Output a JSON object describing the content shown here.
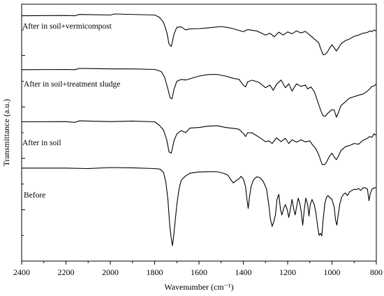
{
  "chart_data": {
    "type": "line",
    "title": "",
    "xlabel": "Wavenumber (cm⁻¹)",
    "ylabel": "Transmittance (a.u.)",
    "xlim": [
      2400,
      800
    ],
    "x_reversed": true,
    "x_ticks": [
      2400,
      2200,
      2000,
      1800,
      1600,
      1400,
      1200,
      1000,
      800
    ],
    "y_units": "arbitrary (stacked spectra, offset baselines)",
    "ylim": [
      0,
      100
    ],
    "grid": false,
    "legend": "none (series labelled directly on plot)",
    "line_color": "#000000",
    "series": [
      {
        "name": "After in soil+vermicompost",
        "points": [
          [
            2400,
            95.5
          ],
          [
            2200,
            95.6
          ],
          [
            2160,
            95.5
          ],
          [
            2140,
            96.0
          ],
          [
            2000,
            95.8
          ],
          [
            1980,
            96.2
          ],
          [
            1800,
            95.8
          ],
          [
            1780,
            95.0
          ],
          [
            1760,
            93.0
          ],
          [
            1745,
            89.0
          ],
          [
            1735,
            84.5
          ],
          [
            1725,
            83.5
          ],
          [
            1712,
            88.5
          ],
          [
            1700,
            91.0
          ],
          [
            1680,
            91.2
          ],
          [
            1660,
            90.0
          ],
          [
            1640,
            90.4
          ],
          [
            1600,
            90.5
          ],
          [
            1560,
            90.8
          ],
          [
            1500,
            91.3
          ],
          [
            1460,
            90.8
          ],
          [
            1420,
            89.8
          ],
          [
            1400,
            89.3
          ],
          [
            1380,
            90.1
          ],
          [
            1340,
            89.6
          ],
          [
            1300,
            88.0
          ],
          [
            1280,
            88.7
          ],
          [
            1260,
            87.3
          ],
          [
            1240,
            89.1
          ],
          [
            1220,
            88.0
          ],
          [
            1200,
            89.2
          ],
          [
            1180,
            88.5
          ],
          [
            1160,
            89.6
          ],
          [
            1140,
            88.8
          ],
          [
            1120,
            89.4
          ],
          [
            1100,
            88.0
          ],
          [
            1080,
            86.5
          ],
          [
            1060,
            85.0
          ],
          [
            1050,
            82.5
          ],
          [
            1040,
            80.3
          ],
          [
            1030,
            80.5
          ],
          [
            1020,
            81.5
          ],
          [
            1010,
            83.0
          ],
          [
            1000,
            84.2
          ],
          [
            990,
            83.0
          ],
          [
            980,
            81.8
          ],
          [
            970,
            83.0
          ],
          [
            960,
            84.5
          ],
          [
            940,
            85.8
          ],
          [
            920,
            86.5
          ],
          [
            900,
            87.5
          ],
          [
            880,
            88.0
          ],
          [
            860,
            88.7
          ],
          [
            840,
            89.0
          ],
          [
            830,
            89.6
          ],
          [
            820,
            89.3
          ],
          [
            810,
            90.0
          ],
          [
            800,
            89.5
          ]
        ]
      },
      {
        "name": "After in soil+treatment sludge",
        "points": [
          [
            2400,
            74.5
          ],
          [
            2200,
            74.6
          ],
          [
            2160,
            74.5
          ],
          [
            2140,
            75.0
          ],
          [
            2000,
            74.8
          ],
          [
            1900,
            74.8
          ],
          [
            1800,
            74.6
          ],
          [
            1770,
            73.8
          ],
          [
            1755,
            71.5
          ],
          [
            1740,
            67.0
          ],
          [
            1730,
            63.5
          ],
          [
            1722,
            63.2
          ],
          [
            1712,
            67.0
          ],
          [
            1700,
            70.0
          ],
          [
            1680,
            70.7
          ],
          [
            1660,
            70.5
          ],
          [
            1600,
            72.0
          ],
          [
            1560,
            72.6
          ],
          [
            1520,
            72.7
          ],
          [
            1480,
            72.0
          ],
          [
            1440,
            71.0
          ],
          [
            1420,
            70.8
          ],
          [
            1400,
            68.5
          ],
          [
            1390,
            67.8
          ],
          [
            1380,
            69.8
          ],
          [
            1360,
            70.4
          ],
          [
            1330,
            69.6
          ],
          [
            1300,
            67.5
          ],
          [
            1280,
            68.5
          ],
          [
            1265,
            66.5
          ],
          [
            1250,
            68.8
          ],
          [
            1230,
            70.5
          ],
          [
            1210,
            67.5
          ],
          [
            1195,
            69.0
          ],
          [
            1180,
            66.2
          ],
          [
            1160,
            69.0
          ],
          [
            1140,
            68.0
          ],
          [
            1120,
            68.5
          ],
          [
            1110,
            67.0
          ],
          [
            1095,
            67.8
          ],
          [
            1080,
            66.0
          ],
          [
            1070,
            63.5
          ],
          [
            1060,
            61.0
          ],
          [
            1050,
            58.5
          ],
          [
            1040,
            56.5
          ],
          [
            1030,
            56.4
          ],
          [
            1020,
            57.5
          ],
          [
            1000,
            59.0
          ],
          [
            990,
            58.8
          ],
          [
            980,
            56.0
          ],
          [
            970,
            58.0
          ],
          [
            960,
            60.5
          ],
          [
            940,
            62.0
          ],
          [
            920,
            63.5
          ],
          [
            900,
            64.0
          ],
          [
            880,
            64.6
          ],
          [
            860,
            65.0
          ],
          [
            840,
            66.2
          ],
          [
            830,
            67.0
          ],
          [
            820,
            68.0
          ],
          [
            810,
            68.2
          ],
          [
            800,
            69.0
          ]
        ]
      },
      {
        "name": "After in soil",
        "points": [
          [
            2400,
            54.2
          ],
          [
            2200,
            54.3
          ],
          [
            2160,
            54.0
          ],
          [
            2140,
            54.6
          ],
          [
            2000,
            54.3
          ],
          [
            1900,
            54.5
          ],
          [
            1800,
            54.2
          ],
          [
            1780,
            53.0
          ],
          [
            1760,
            51.0
          ],
          [
            1745,
            47.0
          ],
          [
            1735,
            42.5
          ],
          [
            1725,
            42.0
          ],
          [
            1712,
            47.0
          ],
          [
            1700,
            49.5
          ],
          [
            1680,
            50.8
          ],
          [
            1660,
            50.0
          ],
          [
            1640,
            51.8
          ],
          [
            1600,
            52.0
          ],
          [
            1560,
            52.5
          ],
          [
            1520,
            52.7
          ],
          [
            1480,
            52.0
          ],
          [
            1440,
            51.6
          ],
          [
            1420,
            51.3
          ],
          [
            1400,
            49.7
          ],
          [
            1390,
            48.5
          ],
          [
            1380,
            50.0
          ],
          [
            1360,
            49.9
          ],
          [
            1330,
            48.3
          ],
          [
            1300,
            46.5
          ],
          [
            1285,
            46.8
          ],
          [
            1270,
            45.8
          ],
          [
            1250,
            48.0
          ],
          [
            1230,
            46.5
          ],
          [
            1210,
            47.8
          ],
          [
            1195,
            45.8
          ],
          [
            1180,
            47.2
          ],
          [
            1160,
            46.3
          ],
          [
            1140,
            47.2
          ],
          [
            1120,
            46.4
          ],
          [
            1100,
            46.8
          ],
          [
            1090,
            45.5
          ],
          [
            1075,
            44.0
          ],
          [
            1060,
            41.5
          ],
          [
            1050,
            39.0
          ],
          [
            1045,
            37.7
          ],
          [
            1035,
            37.5
          ],
          [
            1025,
            38.5
          ],
          [
            1010,
            41.0
          ],
          [
            1000,
            42.0
          ],
          [
            990,
            40.5
          ],
          [
            980,
            39.5
          ],
          [
            970,
            41.0
          ],
          [
            960,
            43.0
          ],
          [
            940,
            44.5
          ],
          [
            920,
            45.0
          ],
          [
            900,
            45.8
          ],
          [
            880,
            45.5
          ],
          [
            860,
            47.0
          ],
          [
            840,
            47.8
          ],
          [
            830,
            48.5
          ],
          [
            820,
            48.2
          ],
          [
            810,
            49.5
          ],
          [
            800,
            49.0
          ]
        ]
      },
      {
        "name": "Before",
        "points": [
          [
            2400,
            36.2
          ],
          [
            2200,
            36.2
          ],
          [
            2100,
            36.0
          ],
          [
            2000,
            36.4
          ],
          [
            1900,
            36.3
          ],
          [
            1800,
            36.0
          ],
          [
            1775,
            35.8
          ],
          [
            1760,
            34.5
          ],
          [
            1750,
            31.0
          ],
          [
            1740,
            24.0
          ],
          [
            1732,
            14.0
          ],
          [
            1726,
            9.5
          ],
          [
            1720,
            6.0
          ],
          [
            1715,
            9.0
          ],
          [
            1708,
            15.0
          ],
          [
            1700,
            22.0
          ],
          [
            1690,
            28.0
          ],
          [
            1680,
            31.5
          ],
          [
            1660,
            33.2
          ],
          [
            1640,
            34.2
          ],
          [
            1600,
            34.7
          ],
          [
            1560,
            34.8
          ],
          [
            1520,
            34.8
          ],
          [
            1490,
            34.2
          ],
          [
            1470,
            33.5
          ],
          [
            1455,
            31.5
          ],
          [
            1445,
            30.4
          ],
          [
            1430,
            31.5
          ],
          [
            1420,
            32.0
          ],
          [
            1410,
            33.0
          ],
          [
            1400,
            32.0
          ],
          [
            1390,
            29.0
          ],
          [
            1385,
            25.0
          ],
          [
            1378,
            20.5
          ],
          [
            1372,
            25.0
          ],
          [
            1365,
            29.0
          ],
          [
            1355,
            31.5
          ],
          [
            1340,
            32.8
          ],
          [
            1325,
            32.5
          ],
          [
            1310,
            31.0
          ],
          [
            1295,
            28.0
          ],
          [
            1285,
            22.0
          ],
          [
            1278,
            16.5
          ],
          [
            1270,
            13.5
          ],
          [
            1262,
            15.5
          ],
          [
            1255,
            18.0
          ],
          [
            1248,
            24.0
          ],
          [
            1240,
            26.0
          ],
          [
            1232,
            20.0
          ],
          [
            1226,
            18.0
          ],
          [
            1218,
            20.5
          ],
          [
            1210,
            22.0
          ],
          [
            1202,
            20.0
          ],
          [
            1195,
            17.0
          ],
          [
            1188,
            20.0
          ],
          [
            1180,
            24.0
          ],
          [
            1172,
            20.0
          ],
          [
            1166,
            18.0
          ],
          [
            1160,
            21.0
          ],
          [
            1152,
            24.5
          ],
          [
            1144,
            22.0
          ],
          [
            1138,
            18.5
          ],
          [
            1132,
            14.0
          ],
          [
            1125,
            20.0
          ],
          [
            1118,
            24.5
          ],
          [
            1110,
            22.0
          ],
          [
            1104,
            17.5
          ],
          [
            1098,
            22.0
          ],
          [
            1090,
            24.0
          ],
          [
            1080,
            22.0
          ],
          [
            1072,
            18.5
          ],
          [
            1064,
            13.0
          ],
          [
            1058,
            10.0
          ],
          [
            1052,
            10.8
          ],
          [
            1046,
            9.8
          ],
          [
            1040,
            16.0
          ],
          [
            1032,
            22.5
          ],
          [
            1024,
            25.0
          ],
          [
            1018,
            25.5
          ],
          [
            1010,
            24.8
          ],
          [
            1000,
            24.0
          ],
          [
            990,
            21.0
          ],
          [
            984,
            16.0
          ],
          [
            978,
            14.0
          ],
          [
            972,
            18.0
          ],
          [
            964,
            22.5
          ],
          [
            956,
            25.0
          ],
          [
            948,
            26.0
          ],
          [
            940,
            26.5
          ],
          [
            930,
            25.5
          ],
          [
            920,
            27.0
          ],
          [
            910,
            27.5
          ],
          [
            900,
            28.0
          ],
          [
            890,
            27.8
          ],
          [
            880,
            28.3
          ],
          [
            870,
            27.5
          ],
          [
            860,
            28.5
          ],
          [
            850,
            28.6
          ],
          [
            840,
            28.0
          ],
          [
            833,
            23.5
          ],
          [
            828,
            26.0
          ],
          [
            820,
            28.0
          ],
          [
            810,
            28.5
          ],
          [
            800,
            28.5
          ]
        ]
      }
    ]
  }
}
